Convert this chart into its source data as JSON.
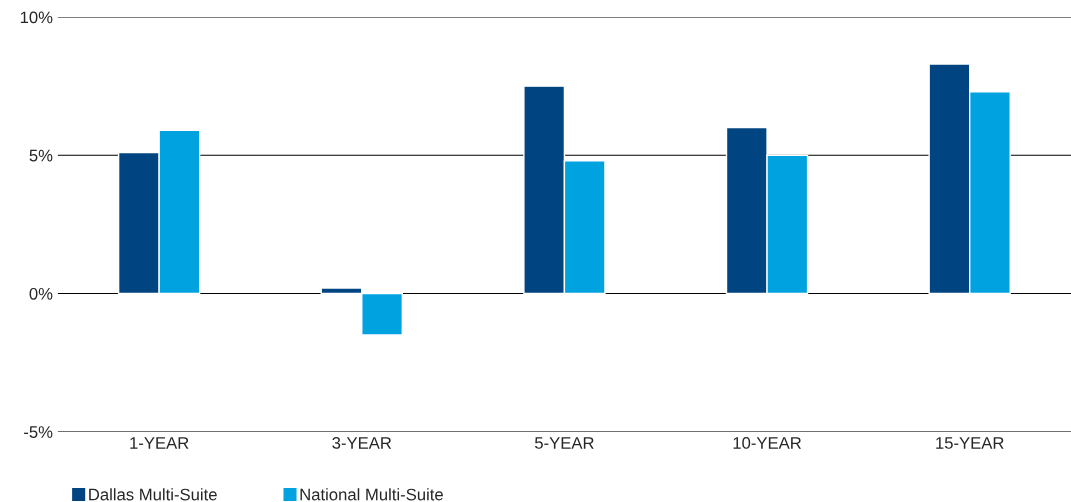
{
  "chart_data": {
    "type": "bar",
    "categories": [
      "1-YEAR",
      "3-YEAR",
      "5-YEAR",
      "10-YEAR",
      "15-YEAR"
    ],
    "series": [
      {
        "name": "Dallas Multi-Suite",
        "color": "#004481",
        "values": [
          5.1,
          0.2,
          7.5,
          6.0,
          8.3
        ]
      },
      {
        "name": "National Multi-Suite",
        "color": "#00a3e0",
        "values": [
          5.9,
          -1.5,
          4.8,
          5.0,
          7.3
        ]
      }
    ],
    "ylim": [
      -5,
      10
    ],
    "yticks": [
      {
        "value": -5,
        "label": "-5%"
      },
      {
        "value": 0,
        "label": "0%"
      },
      {
        "value": 5,
        "label": "5%"
      },
      {
        "value": 10,
        "label": "10%"
      }
    ],
    "grid": "y",
    "legend": "bottom left"
  }
}
